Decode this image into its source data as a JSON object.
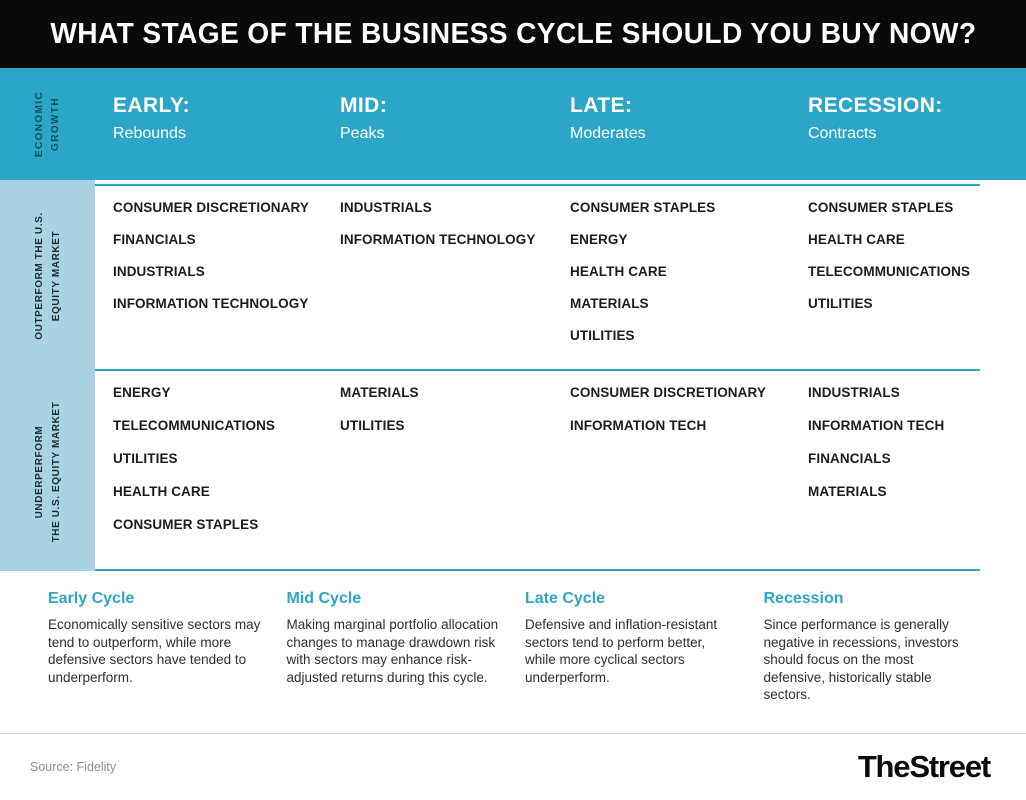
{
  "title": "WHAT STAGE OF THE BUSINESS CYCLE SHOULD YOU BUY NOW?",
  "colors": {
    "teal": "#2BA6C9",
    "sidebar_blue": "#A9D3E3",
    "titlebar_black": "#0A0A0A"
  },
  "header": {
    "axis_lines": [
      "ECONOMIC",
      "GROWTH"
    ],
    "stages": [
      {
        "label": "EARLY:",
        "sub": "Rebounds"
      },
      {
        "label": "MID:",
        "sub": "Peaks"
      },
      {
        "label": "LATE:",
        "sub": "Moderates"
      },
      {
        "label": "RECESSION:",
        "sub": "Contracts"
      }
    ]
  },
  "rows": [
    {
      "label_lines": [
        "OUTPERFORM THE U.S.",
        "EQUITY MARKET"
      ],
      "columns": [
        [
          "CONSUMER DISCRETIONARY",
          "FINANCIALS",
          "INDUSTRIALS",
          "INFORMATION TECHNOLOGY"
        ],
        [
          "INDUSTRIALS",
          "INFORMATION TECHNOLOGY"
        ],
        [
          "CONSUMER STAPLES",
          "ENERGY",
          "HEALTH CARE",
          "MATERIALS",
          "UTILITIES"
        ],
        [
          "CONSUMER STAPLES",
          "HEALTH CARE",
          "TELECOMMUNICATIONS",
          "UTILITIES"
        ]
      ]
    },
    {
      "label_lines": [
        "UNDERPERFORM",
        "THE U.S. EQUITY MARKET"
      ],
      "columns": [
        [
          "ENERGY",
          "TELECOMMUNICATIONS",
          "UTILITIES",
          "HEALTH CARE",
          "CONSUMER STAPLES"
        ],
        [
          "MATERIALS",
          "UTILITIES"
        ],
        [
          "CONSUMER DISCRETIONARY",
          "INFORMATION TECH"
        ],
        [
          "INDUSTRIALS",
          "INFORMATION TECH",
          "FINANCIALS",
          "MATERIALS"
        ]
      ]
    }
  ],
  "descriptions": [
    {
      "heading": "Early Cycle",
      "text": "Economically sensitive sectors may tend to outperform, while more defensive sectors have tended to underperform."
    },
    {
      "heading": "Mid Cycle",
      "text": "Making marginal portfolio allocation changes to manage drawdown risk with sectors may enhance risk-adjusted returns during this cycle."
    },
    {
      "heading": "Late Cycle",
      "text": "Defensive and inflation-resistant sectors tend to perform better, while more cyclical sectors underperform."
    },
    {
      "heading": "Recession",
      "text": "Since performance is generally negative in recessions, investors should focus on the most defensive, historically stable sectors."
    }
  ],
  "footer": {
    "source": "Source: Fidelity",
    "brand": "TheStreet"
  },
  "chart_data": {
    "type": "table",
    "title": "WHAT STAGE OF THE BUSINESS CYCLE SHOULD YOU BUY NOW?",
    "x_axis_label": "ECONOMIC GROWTH",
    "columns": [
      "EARLY: Rebounds",
      "MID: Peaks",
      "LATE: Moderates",
      "RECESSION: Contracts"
    ],
    "rows": [
      "OUTPERFORM THE U.S. EQUITY MARKET",
      "UNDERPERFORM THE U.S. EQUITY MARKET"
    ],
    "cells": [
      [
        [
          "CONSUMER DISCRETIONARY",
          "FINANCIALS",
          "INDUSTRIALS",
          "INFORMATION TECHNOLOGY"
        ],
        [
          "INDUSTRIALS",
          "INFORMATION TECHNOLOGY"
        ],
        [
          "CONSUMER STAPLES",
          "ENERGY",
          "HEALTH CARE",
          "MATERIALS",
          "UTILITIES"
        ],
        [
          "CONSUMER STAPLES",
          "HEALTH CARE",
          "TELECOMMUNICATIONS",
          "UTILITIES"
        ]
      ],
      [
        [
          "ENERGY",
          "TELECOMMUNICATIONS",
          "UTILITIES",
          "HEALTH CARE",
          "CONSUMER STAPLES"
        ],
        [
          "MATERIALS",
          "UTILITIES"
        ],
        [
          "CONSUMER DISCRETIONARY",
          "INFORMATION TECH"
        ],
        [
          "INDUSTRIALS",
          "INFORMATION TECH",
          "FINANCIALS",
          "MATERIALS"
        ]
      ]
    ],
    "source": "Fidelity"
  }
}
